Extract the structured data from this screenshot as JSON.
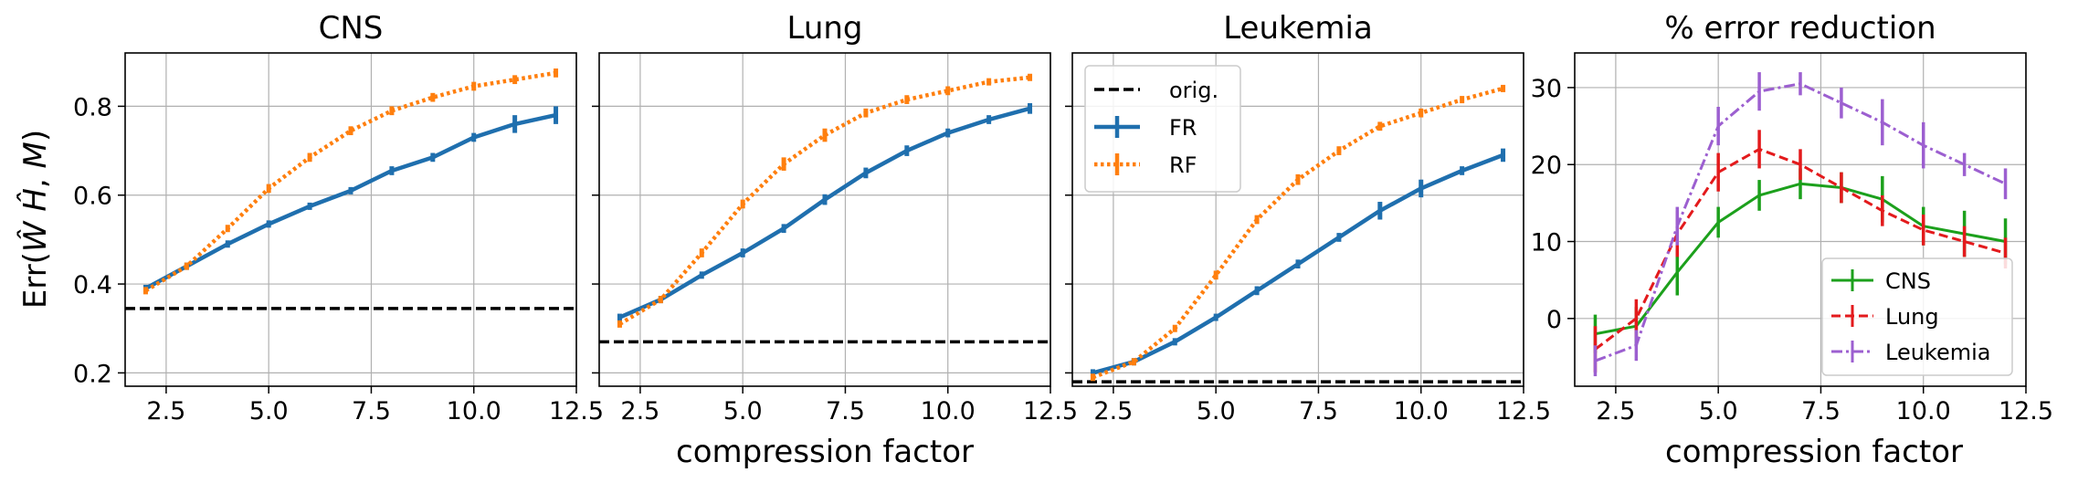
{
  "chart_data": [
    {
      "type": "line",
      "title": "CNS",
      "xlabel": "",
      "ylabel": "Err(ŴĤ, M)",
      "xlim": [
        1.5,
        12.5
      ],
      "ylim": [
        0.17,
        0.92
      ],
      "xticks": [
        2.5,
        5.0,
        7.5,
        10.0,
        12.5
      ],
      "xtick_labels": [
        "2.5",
        "5.0",
        "7.5",
        "10.0",
        "12.5"
      ],
      "yticks": [
        0.2,
        0.4,
        0.6,
        0.8
      ],
      "ytick_labels": [
        "0.2",
        "0.4",
        "0.6",
        "0.8"
      ],
      "x": [
        2,
        3,
        4,
        5,
        6,
        7,
        8,
        9,
        10,
        11,
        12
      ],
      "series": [
        {
          "name": "orig.",
          "style": "orig",
          "hline": 0.345
        },
        {
          "name": "FR",
          "style": "fr",
          "values": [
            0.39,
            0.44,
            0.49,
            0.535,
            0.575,
            0.61,
            0.655,
            0.685,
            0.73,
            0.76,
            0.78
          ],
          "errors": [
            0.006,
            0.006,
            0.006,
            0.008,
            0.008,
            0.008,
            0.01,
            0.01,
            0.01,
            0.02,
            0.02
          ]
        },
        {
          "name": "RF",
          "style": "rf",
          "values": [
            0.385,
            0.44,
            0.525,
            0.615,
            0.685,
            0.745,
            0.79,
            0.82,
            0.845,
            0.86,
            0.875
          ],
          "errors": [
            0.006,
            0.006,
            0.008,
            0.01,
            0.01,
            0.01,
            0.01,
            0.01,
            0.01,
            0.01,
            0.01
          ]
        }
      ]
    },
    {
      "type": "line",
      "title": "Lung",
      "xlabel": "compression factor",
      "ylabel": "",
      "xlim": [
        1.5,
        12.5
      ],
      "ylim": [
        0.17,
        0.92
      ],
      "xticks": [
        2.5,
        5.0,
        7.5,
        10.0,
        12.5
      ],
      "xtick_labels": [
        "2.5",
        "5.0",
        "7.5",
        "10.0",
        "12.5"
      ],
      "x": [
        2,
        3,
        4,
        5,
        6,
        7,
        8,
        9,
        10,
        11,
        12
      ],
      "series": [
        {
          "name": "orig.",
          "style": "orig",
          "hline": 0.27
        },
        {
          "name": "FR",
          "style": "fr",
          "values": [
            0.325,
            0.365,
            0.42,
            0.47,
            0.525,
            0.59,
            0.65,
            0.7,
            0.74,
            0.77,
            0.795
          ],
          "errors": [
            0.006,
            0.006,
            0.008,
            0.01,
            0.01,
            0.012,
            0.012,
            0.012,
            0.01,
            0.01,
            0.012
          ]
        },
        {
          "name": "RF",
          "style": "rf",
          "values": [
            0.31,
            0.365,
            0.47,
            0.58,
            0.67,
            0.735,
            0.785,
            0.815,
            0.835,
            0.855,
            0.865
          ],
          "errors": [
            0.006,
            0.006,
            0.01,
            0.01,
            0.015,
            0.015,
            0.01,
            0.01,
            0.01,
            0.008,
            0.008
          ]
        }
      ]
    },
    {
      "type": "line",
      "title": "Leukemia",
      "xlabel": "",
      "ylabel": "",
      "xlim": [
        1.5,
        12.5
      ],
      "ylim": [
        0.17,
        0.92
      ],
      "xticks": [
        2.5,
        5.0,
        7.5,
        10.0,
        12.5
      ],
      "xtick_labels": [
        "2.5",
        "5.0",
        "7.5",
        "10.0",
        "12.5"
      ],
      "x": [
        2,
        3,
        4,
        5,
        6,
        7,
        8,
        9,
        10,
        11,
        12
      ],
      "legend": {
        "position": "top-left",
        "entries": [
          "orig.",
          "FR",
          "RF"
        ]
      },
      "series": [
        {
          "name": "orig.",
          "style": "orig",
          "hline": 0.18
        },
        {
          "name": "FR",
          "style": "fr",
          "values": [
            0.2,
            0.225,
            0.27,
            0.325,
            0.385,
            0.445,
            0.505,
            0.565,
            0.615,
            0.655,
            0.69
          ],
          "errors": [
            0.005,
            0.005,
            0.006,
            0.008,
            0.01,
            0.01,
            0.01,
            0.02,
            0.02,
            0.01,
            0.015
          ]
        },
        {
          "name": "RF",
          "style": "rf",
          "values": [
            0.19,
            0.225,
            0.3,
            0.42,
            0.545,
            0.635,
            0.7,
            0.755,
            0.785,
            0.815,
            0.84
          ],
          "errors": [
            0.005,
            0.005,
            0.008,
            0.01,
            0.01,
            0.012,
            0.01,
            0.01,
            0.01,
            0.008,
            0.008
          ]
        }
      ]
    },
    {
      "type": "line",
      "title": "% error reduction",
      "xlabel": "compression factor",
      "ylabel": "",
      "xlim": [
        1.5,
        12.5
      ],
      "ylim": [
        -8.8,
        34.5
      ],
      "xticks": [
        2.5,
        5.0,
        7.5,
        10.0,
        12.5
      ],
      "xtick_labels": [
        "2.5",
        "5.0",
        "7.5",
        "10.0",
        "12.5"
      ],
      "yticks": [
        0,
        10,
        20,
        30
      ],
      "ytick_labels": [
        "0",
        "10",
        "20",
        "30"
      ],
      "x": [
        2,
        3,
        4,
        5,
        6,
        7,
        8,
        9,
        10,
        11,
        12
      ],
      "legend": {
        "position": "bottom-right",
        "entries": [
          "CNS",
          "Lung",
          "Leukemia"
        ]
      },
      "series": [
        {
          "name": "CNS",
          "style": "cns",
          "color": "#1ca01c",
          "values": [
            -2,
            -1,
            6,
            12.5,
            16,
            17.5,
            17,
            15.5,
            12,
            11,
            10
          ],
          "errors": [
            2.5,
            2.5,
            3,
            2,
            2,
            2,
            2,
            3,
            2.5,
            3,
            3
          ]
        },
        {
          "name": "Lung",
          "style": "lung",
          "color": "#e31a1c",
          "values": [
            -4,
            0,
            11,
            19,
            22,
            20,
            17,
            14,
            11.5,
            10,
            8.5
          ],
          "errors": [
            3,
            2.5,
            3,
            2.5,
            2.5,
            2,
            2,
            2,
            2,
            2,
            2
          ]
        },
        {
          "name": "Leukemia",
          "style": "leuk",
          "color": "#9c5fd0",
          "values": [
            -5.5,
            -3.5,
            12,
            25,
            29.5,
            30.5,
            28,
            25.5,
            22.5,
            20,
            17.5
          ],
          "errors": [
            2,
            2,
            2.5,
            2.5,
            2.5,
            1.5,
            2,
            3,
            3,
            1.5,
            2
          ]
        }
      ]
    }
  ]
}
